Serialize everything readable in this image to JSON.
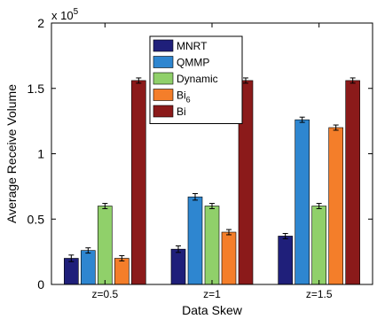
{
  "chart_data": {
    "type": "bar",
    "title": "",
    "xlabel": "Data Skew",
    "ylabel": "Average Receive Volume",
    "y_multiplier": {
      "base": "x 10",
      "exponent": "5"
    },
    "categories": [
      "z=0.5",
      "z=1",
      "z=1.5"
    ],
    "ylim": [
      0,
      200000
    ],
    "yticks": [
      0,
      50000,
      100000,
      150000,
      200000
    ],
    "ytick_labels": [
      "0",
      "0.5",
      "1",
      "1.5",
      "2"
    ],
    "grid": false,
    "legend_position": "top-left",
    "error_bars": true,
    "series": [
      {
        "name": "MNRT",
        "name_main": "MNRT",
        "name_sub": "",
        "color": "#1f1f7a",
        "values": [
          20000,
          27000,
          37000
        ],
        "errors": [
          2500,
          2500,
          2000
        ]
      },
      {
        "name": "QMMP",
        "name_main": "QMMP",
        "name_sub": "",
        "color": "#2e86d0",
        "values": [
          26000,
          67000,
          126000
        ],
        "errors": [
          2000,
          2500,
          2000
        ]
      },
      {
        "name": "Dynamic",
        "name_main": "Dynamic",
        "name_sub": "",
        "color": "#90d06a",
        "values": [
          60000,
          60000,
          60000
        ],
        "errors": [
          2000,
          2000,
          2000
        ]
      },
      {
        "name": "Bi6",
        "name_main": "Bi",
        "name_sub": "6",
        "color": "#f47e2a",
        "values": [
          20000,
          40000,
          120000
        ],
        "errors": [
          2000,
          2000,
          2000
        ]
      },
      {
        "name": "Bi",
        "name_main": "Bi",
        "name_sub": "",
        "color": "#8b1a1a",
        "values": [
          156000,
          156000,
          156000
        ],
        "errors": [
          2000,
          2000,
          2000
        ]
      }
    ]
  }
}
